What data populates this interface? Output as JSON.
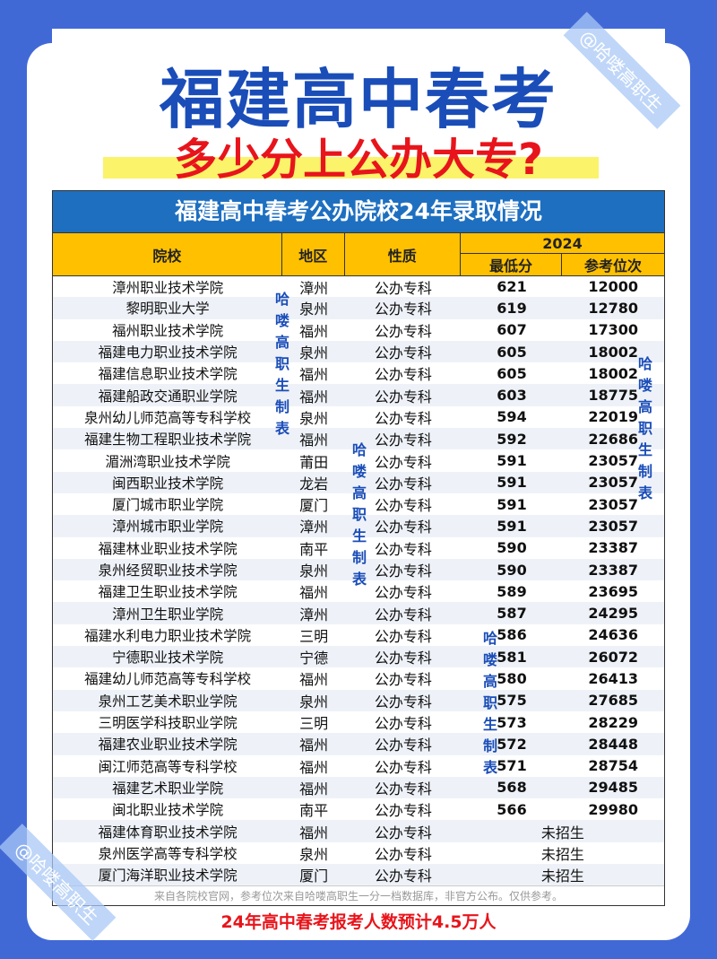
{
  "header": {
    "title": "福建高中春考",
    "subtitle": "多少分上公办大专?"
  },
  "table": {
    "title": "福建高中春考公办院校24年录取情况",
    "columns": {
      "school": "院校",
      "region": "地区",
      "type": "性质",
      "year": "2024",
      "min_score": "最低分",
      "rank": "参考位次"
    },
    "rows": [
      [
        "漳州职业技术学院",
        "漳州",
        "公办专科",
        "621",
        "12000"
      ],
      [
        "黎明职业大学",
        "泉州",
        "公办专科",
        "619",
        "12780"
      ],
      [
        "福州职业技术学院",
        "福州",
        "公办专科",
        "607",
        "17300"
      ],
      [
        "福建电力职业技术学院",
        "泉州",
        "公办专科",
        "605",
        "18002"
      ],
      [
        "福建信息职业技术学院",
        "福州",
        "公办专科",
        "605",
        "18002"
      ],
      [
        "福建船政交通职业学院",
        "福州",
        "公办专科",
        "603",
        "18775"
      ],
      [
        "泉州幼儿师范高等专科学校",
        "泉州",
        "公办专科",
        "594",
        "22019"
      ],
      [
        "福建生物工程职业技术学院",
        "福州",
        "公办专科",
        "592",
        "22686"
      ],
      [
        "湄洲湾职业技术学院",
        "莆田",
        "公办专科",
        "591",
        "23057"
      ],
      [
        "闽西职业技术学院",
        "龙岩",
        "公办专科",
        "591",
        "23057"
      ],
      [
        "厦门城市职业学院",
        "厦门",
        "公办专科",
        "591",
        "23057"
      ],
      [
        "漳州城市职业学院",
        "漳州",
        "公办专科",
        "591",
        "23057"
      ],
      [
        "福建林业职业技术学院",
        "南平",
        "公办专科",
        "590",
        "23387"
      ],
      [
        "泉州经贸职业技术学院",
        "泉州",
        "公办专科",
        "590",
        "23387"
      ],
      [
        "福建卫生职业技术学院",
        "福州",
        "公办专科",
        "589",
        "23695"
      ],
      [
        "漳州卫生职业学院",
        "漳州",
        "公办专科",
        "587",
        "24295"
      ],
      [
        "福建水利电力职业技术学院",
        "三明",
        "公办专科",
        "586",
        "24636"
      ],
      [
        "宁德职业技术学院",
        "宁德",
        "公办专科",
        "581",
        "26072"
      ],
      [
        "福建幼儿师范高等专科学校",
        "福州",
        "公办专科",
        "580",
        "26413"
      ],
      [
        "泉州工艺美术职业学院",
        "泉州",
        "公办专科",
        "575",
        "27685"
      ],
      [
        "三明医学科技职业学院",
        "三明",
        "公办专科",
        "573",
        "28229"
      ],
      [
        "福建农业职业技术学院",
        "福州",
        "公办专科",
        "572",
        "28448"
      ],
      [
        "闽江师范高等专科学校",
        "福州",
        "公办专科",
        "571",
        "28754"
      ],
      [
        "福建艺术职业学院",
        "福州",
        "公办专科",
        "568",
        "29485"
      ],
      [
        "闽北职业技术学院",
        "南平",
        "公办专科",
        "566",
        "29980"
      ]
    ],
    "not_enrolled_rows": [
      [
        "福建体育职业技术学院",
        "福州",
        "公办专科",
        "未招生"
      ],
      [
        "泉州医学高等专科学校",
        "泉州",
        "公办专科",
        "未招生"
      ],
      [
        "厦门海洋职业技术学院",
        "厦门",
        "公办专科",
        "未招生"
      ]
    ],
    "footnote": "来自各院校官网，参考位次来自哈喽高职生一分一档数据库，非官方公布。仅供参考。"
  },
  "bottom_note": "24年高中春考报考人数预计4.5万人",
  "watermark": "哈喽高职生制表",
  "stamp": "@哈喽高职生",
  "colors": {
    "background": "#4169d6",
    "title": "#1a4db8",
    "accent_red": "#e8141b",
    "header_yellow": "#ffc000",
    "table_title_blue": "#1e6fc0"
  }
}
